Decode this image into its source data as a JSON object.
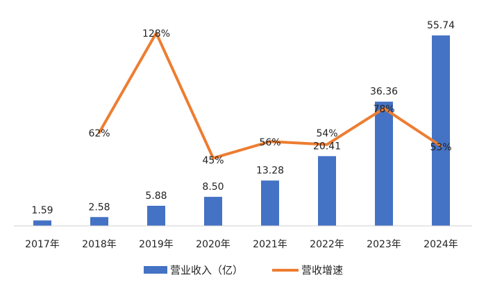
{
  "chart_data": {
    "type": "bar",
    "categories": [
      "2017年",
      "2018年",
      "2019年",
      "2020年",
      "2021年",
      "2022年",
      "2023年",
      "2024年"
    ],
    "series": [
      {
        "name": "营业收入（亿）",
        "type": "bar",
        "axis": "left",
        "color": "#4472C4",
        "values": [
          1.59,
          2.58,
          5.88,
          8.5,
          13.28,
          20.41,
          36.36,
          55.74
        ],
        "labels": [
          "1.59",
          "2.58",
          "5.88",
          "8.50",
          "13.28",
          "20.41",
          "36.36",
          "55.74"
        ]
      },
      {
        "name": "营收增速",
        "type": "line",
        "axis": "right",
        "color": "#ED7D31",
        "values": [
          null,
          62,
          128,
          45,
          56,
          54,
          78,
          53
        ],
        "labels": [
          "",
          "62%",
          "128%",
          "45%",
          "56%",
          "54%",
          "78%",
          "53%"
        ]
      }
    ],
    "ylim_left": [
      0,
      58
    ],
    "ylim_right": [
      0,
      132
    ],
    "grid": false,
    "legend_position": "bottom"
  }
}
